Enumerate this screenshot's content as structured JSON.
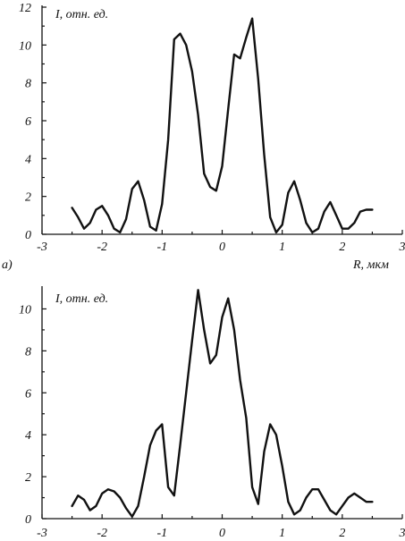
{
  "chart_data": [
    {
      "type": "line",
      "panel_label": "а)",
      "ylabel": "I, отн. ед.",
      "xlabel": "R, мкм",
      "xlim": [
        -3,
        3
      ],
      "ylim": [
        0,
        12
      ],
      "x_ticks": [
        "-3",
        "-2",
        "-1",
        "0",
        "1",
        "2",
        "3"
      ],
      "y_ticks": [
        "0",
        "2",
        "4",
        "6",
        "8",
        "10",
        "12"
      ],
      "grid": false,
      "series": [
        {
          "x": [
            -2.5,
            -2.4,
            -2.3,
            -2.2,
            -2.1,
            -2.0,
            -1.9,
            -1.8,
            -1.7,
            -1.6,
            -1.5,
            -1.4,
            -1.3,
            -1.2,
            -1.1,
            -1.0,
            -0.9,
            -0.8,
            -0.7,
            -0.6,
            -0.5,
            -0.4,
            -0.3,
            -0.2,
            -0.1,
            0.0,
            0.1,
            0.2,
            0.3,
            0.4,
            0.5,
            0.6,
            0.7,
            0.8,
            0.9,
            1.0,
            1.1,
            1.2,
            1.3,
            1.4,
            1.5,
            1.6,
            1.7,
            1.8,
            1.9,
            2.0,
            2.1,
            2.2,
            2.3,
            2.4,
            2.5
          ],
          "y": [
            1.4,
            0.9,
            0.3,
            0.6,
            1.3,
            1.5,
            1.0,
            0.3,
            0.1,
            0.8,
            2.4,
            2.8,
            1.8,
            0.4,
            0.2,
            1.6,
            5.0,
            10.3,
            10.6,
            10.0,
            8.6,
            6.3,
            3.2,
            2.5,
            2.3,
            3.6,
            6.6,
            9.5,
            9.3,
            10.4,
            11.4,
            8.2,
            4.2,
            0.9,
            0.1,
            0.5,
            2.2,
            2.8,
            1.8,
            0.6,
            0.1,
            0.3,
            1.2,
            1.7,
            1.0,
            0.3,
            0.3,
            0.6,
            1.2,
            1.3,
            1.3
          ]
        }
      ]
    },
    {
      "type": "line",
      "ylabel": "I, отн. ед.",
      "xlim": [
        -3,
        3
      ],
      "ylim": [
        0,
        11
      ],
      "x_ticks": [
        "-3",
        "-2",
        "-1",
        "0",
        "1",
        "2",
        "3"
      ],
      "y_ticks": [
        "0",
        "2",
        "4",
        "6",
        "8",
        "10"
      ],
      "grid": false,
      "series": [
        {
          "x": [
            -2.5,
            -2.4,
            -2.3,
            -2.2,
            -2.1,
            -2.0,
            -1.9,
            -1.8,
            -1.7,
            -1.6,
            -1.5,
            -1.4,
            -1.3,
            -1.2,
            -1.1,
            -1.0,
            -0.9,
            -0.8,
            -0.7,
            -0.6,
            -0.5,
            -0.4,
            -0.3,
            -0.2,
            -0.1,
            0.0,
            0.1,
            0.2,
            0.3,
            0.4,
            0.5,
            0.6,
            0.7,
            0.8,
            0.9,
            1.0,
            1.1,
            1.2,
            1.3,
            1.4,
            1.5,
            1.6,
            1.7,
            1.8,
            1.9,
            2.0,
            2.1,
            2.2,
            2.3,
            2.4,
            2.5
          ],
          "y": [
            0.6,
            1.1,
            0.9,
            0.4,
            0.6,
            1.2,
            1.4,
            1.3,
            1.0,
            0.5,
            0.1,
            0.6,
            2.0,
            3.5,
            4.2,
            4.5,
            1.5,
            1.1,
            3.5,
            6.0,
            8.5,
            10.9,
            9.0,
            7.4,
            7.8,
            9.6,
            10.5,
            9.0,
            6.6,
            4.8,
            1.5,
            0.7,
            3.2,
            4.5,
            4.0,
            2.5,
            0.8,
            0.2,
            0.4,
            1.0,
            1.4,
            1.4,
            0.9,
            0.4,
            0.2,
            0.6,
            1.0,
            1.2,
            1.0,
            0.8,
            0.8
          ]
        }
      ]
    }
  ]
}
